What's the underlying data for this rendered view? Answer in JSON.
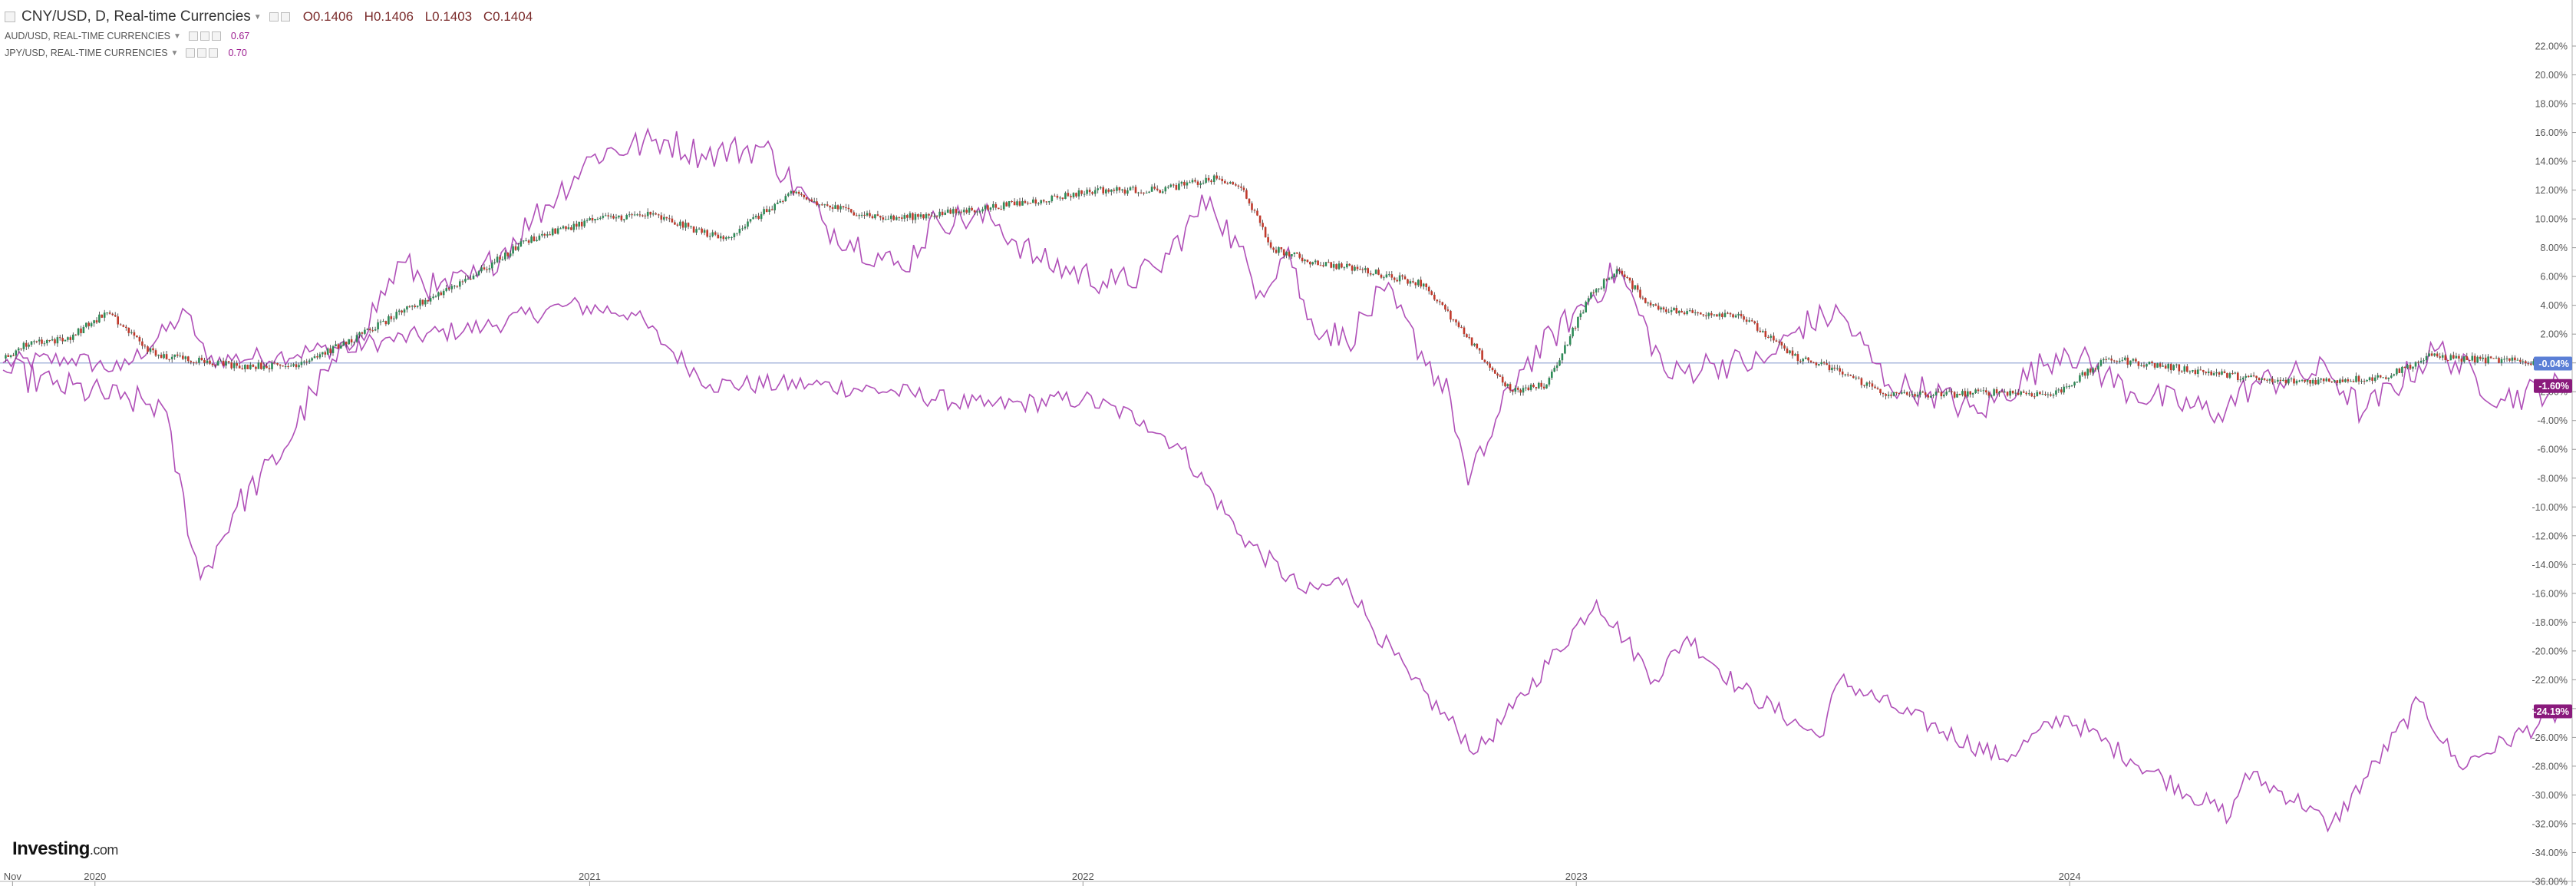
{
  "header": {
    "main_symbol": "CNY/USD, D, Real-time Currencies",
    "ohlc": {
      "open": "O0.1406",
      "high": "H0.1406",
      "low": "L0.1403",
      "close": "C0.1404"
    },
    "overlays": [
      {
        "label": "AUD/USD, REAL-TIME CURRENCIES",
        "value": "0.67"
      },
      {
        "label": "JPY/USD, REAL-TIME CURRENCIES",
        "value": "0.70"
      }
    ]
  },
  "logo": {
    "brand": "Investing",
    "suffix": ".com"
  },
  "colors": {
    "overlay_line": "#b050b8",
    "candle_up": "#2e8b57",
    "candle_down": "#c0392b",
    "zero_line": "#aab8dd",
    "badge_main": "#5b7fd6",
    "badge_overlay": "#8a1a7c"
  },
  "chart_data": {
    "type": "line",
    "title": "",
    "xlabel": "",
    "ylabel": "",
    "y_unit": "percent change",
    "ylim": [
      -36,
      23
    ],
    "x_range": [
      "2019-10-25",
      "2024-12-31"
    ],
    "y_ticks": [
      "22.00%",
      "20.00%",
      "18.00%",
      "16.00%",
      "14.00%",
      "12.00%",
      "10.00%",
      "8.00%",
      "6.00%",
      "4.00%",
      "2.00%",
      "0.00%",
      "-2.00%",
      "-4.00%",
      "-6.00%",
      "-8.00%",
      "-10.00%",
      "-12.00%",
      "-14.00%",
      "-16.00%",
      "-18.00%",
      "-20.00%",
      "-22.00%",
      "-24.00%",
      "-26.00%",
      "-28.00%",
      "-30.00%",
      "-32.00%",
      "-34.00%",
      "-36.00%"
    ],
    "x_ticks": [
      {
        "label": "Nov",
        "date": "2019-11-01"
      },
      {
        "label": "2020",
        "date": "2020-01-01"
      },
      {
        "label": "2021",
        "date": "2021-01-01"
      },
      {
        "label": "2022",
        "date": "2022-01-01"
      },
      {
        "label": "2023",
        "date": "2023-01-01"
      },
      {
        "label": "2024",
        "date": "2024-01-01"
      }
    ],
    "grid": false,
    "legend": "top-left",
    "end_labels": [
      {
        "series": "CNY/USD",
        "text": "-0.04%",
        "value": -0.04
      },
      {
        "series": "AUD/USD",
        "text": "-1.60%",
        "value": -1.6
      },
      {
        "series": "JPY/USD",
        "text": "-24.19%",
        "value": -24.19
      }
    ],
    "series": [
      {
        "name": "CNY/USD",
        "style": "candlestick",
        "x": [
          "2019-10-25",
          "2019-11-15",
          "2019-12-10",
          "2020-01-10",
          "2020-02-15",
          "2020-03-20",
          "2020-04-15",
          "2020-05-25",
          "2020-07-01",
          "2020-08-15",
          "2020-09-15",
          "2020-10-15",
          "2020-11-15",
          "2021-01-05",
          "2021-02-15",
          "2021-04-10",
          "2021-06-01",
          "2021-06-20",
          "2021-08-10",
          "2021-10-01",
          "2021-12-01",
          "2022-01-10",
          "2022-02-25",
          "2022-04-10",
          "2022-04-30",
          "2022-05-20",
          "2022-06-20",
          "2022-07-25",
          "2022-09-10",
          "2022-10-10",
          "2022-10-31",
          "2022-11-15",
          "2022-12-10",
          "2023-01-10",
          "2023-01-31",
          "2023-02-25",
          "2023-03-20",
          "2023-05-01",
          "2023-06-10",
          "2023-07-15",
          "2023-08-20",
          "2023-09-30",
          "2023-11-10",
          "2023-12-20",
          "2024-01-30",
          "2024-04-01",
          "2024-06-01",
          "2024-07-15",
          "2024-08-20",
          "2024-09-25",
          "2024-10-15",
          "2024-12-31"
        ],
        "values": [
          0.3,
          1.5,
          1.6,
          3.5,
          0.5,
          0.2,
          -0.2,
          -0.2,
          1.2,
          3.5,
          5.0,
          6.5,
          8.5,
          10.0,
          10.3,
          8.6,
          11.8,
          11.0,
          10.0,
          10.5,
          11.3,
          12.0,
          12.0,
          12.8,
          12.0,
          8.0,
          7.0,
          6.5,
          5.5,
          2.0,
          -0.5,
          -2.0,
          -1.5,
          4.5,
          6.5,
          4.0,
          3.5,
          3.4,
          0.5,
          -0.6,
          -2.2,
          -2.2,
          -2.0,
          -2.2,
          0.3,
          -0.5,
          -1.3,
          -1.2,
          -1.0,
          0.5,
          0.3,
          -0.04
        ]
      },
      {
        "name": "AUD/USD",
        "style": "line",
        "x": [
          "2019-10-25",
          "2019-12-01",
          "2020-01-20",
          "2020-02-20",
          "2020-03-19",
          "2020-04-15",
          "2020-05-20",
          "2020-06-10",
          "2020-07-15",
          "2020-08-15",
          "2020-09-10",
          "2020-10-10",
          "2020-11-20",
          "2021-01-05",
          "2021-02-25",
          "2021-03-25",
          "2021-05-10",
          "2021-06-25",
          "2021-08-20",
          "2021-09-15",
          "2021-10-25",
          "2021-12-01",
          "2022-01-25",
          "2022-02-25",
          "2022-04-05",
          "2022-05-12",
          "2022-06-02",
          "2022-06-16",
          "2022-07-15",
          "2022-08-12",
          "2022-09-30",
          "2022-10-13",
          "2022-11-20",
          "2023-02-01",
          "2023-03-10",
          "2023-04-10",
          "2023-05-20",
          "2023-06-15",
          "2023-07-15",
          "2023-08-20",
          "2023-09-20",
          "2023-10-25",
          "2023-12-28",
          "2024-02-15",
          "2024-04-20",
          "2024-05-15",
          "2024-07-10",
          "2024-08-05",
          "2024-09-30",
          "2024-11-15",
          "2024-12-31"
        ],
        "values": [
          -0.5,
          -1.5,
          -2.5,
          -3.0,
          -15.0,
          -10.0,
          -6.0,
          -2.0,
          2.0,
          7.0,
          5.0,
          6.0,
          10.0,
          14.5,
          15.5,
          14.5,
          15.0,
          9.5,
          6.5,
          10.0,
          10.0,
          7.0,
          5.5,
          6.5,
          11.5,
          5.0,
          8.0,
          3.0,
          1.5,
          5.0,
          -2.5,
          -8.5,
          -0.5,
          6.5,
          -1.0,
          0.0,
          0.0,
          2.5,
          3.5,
          -1.5,
          -2.0,
          -3.5,
          1.0,
          -2.0,
          -3.5,
          -1.5,
          -0.5,
          -3.5,
          1.0,
          -2.5,
          -1.6
        ]
      },
      {
        "name": "JPY/USD",
        "style": "line",
        "x": [
          "2019-10-25",
          "2019-12-15",
          "2020-01-20",
          "2020-03-09",
          "2020-03-24",
          "2020-05-15",
          "2020-07-31",
          "2020-10-15",
          "2020-12-15",
          "2021-02-01",
          "2021-03-01",
          "2021-03-31",
          "2021-06-15",
          "2021-08-15",
          "2021-10-20",
          "2022-01-01",
          "2022-02-15",
          "2022-03-15",
          "2022-04-28",
          "2022-06-15",
          "2022-07-15",
          "2022-08-01",
          "2022-09-01",
          "2022-10-20",
          "2022-11-15",
          "2023-01-16",
          "2023-02-28",
          "2023-03-24",
          "2023-05-01",
          "2023-06-30",
          "2023-07-15",
          "2023-08-25",
          "2023-11-13",
          "2023-12-28",
          "2024-02-15",
          "2024-04-29",
          "2024-05-10",
          "2024-06-30",
          "2024-07-10",
          "2024-09-16",
          "2024-10-15",
          "2024-12-31"
        ],
        "values": [
          0.0,
          0.3,
          -0.5,
          3.5,
          0.2,
          0.5,
          1.5,
          2.5,
          4.0,
          3.5,
          1.0,
          -1.5,
          -1.5,
          -2.0,
          -3.0,
          -2.5,
          -4.0,
          -6.0,
          -12.0,
          -16.0,
          -15.0,
          -18.0,
          -22.0,
          -27.0,
          -24.0,
          -16.5,
          -22.0,
          -19.0,
          -22.5,
          -26.0,
          -22.0,
          -24.0,
          -27.5,
          -24.5,
          -27.5,
          -31.5,
          -28.5,
          -31.0,
          -32.5,
          -23.5,
          -28.0,
          -24.19
        ]
      }
    ]
  }
}
